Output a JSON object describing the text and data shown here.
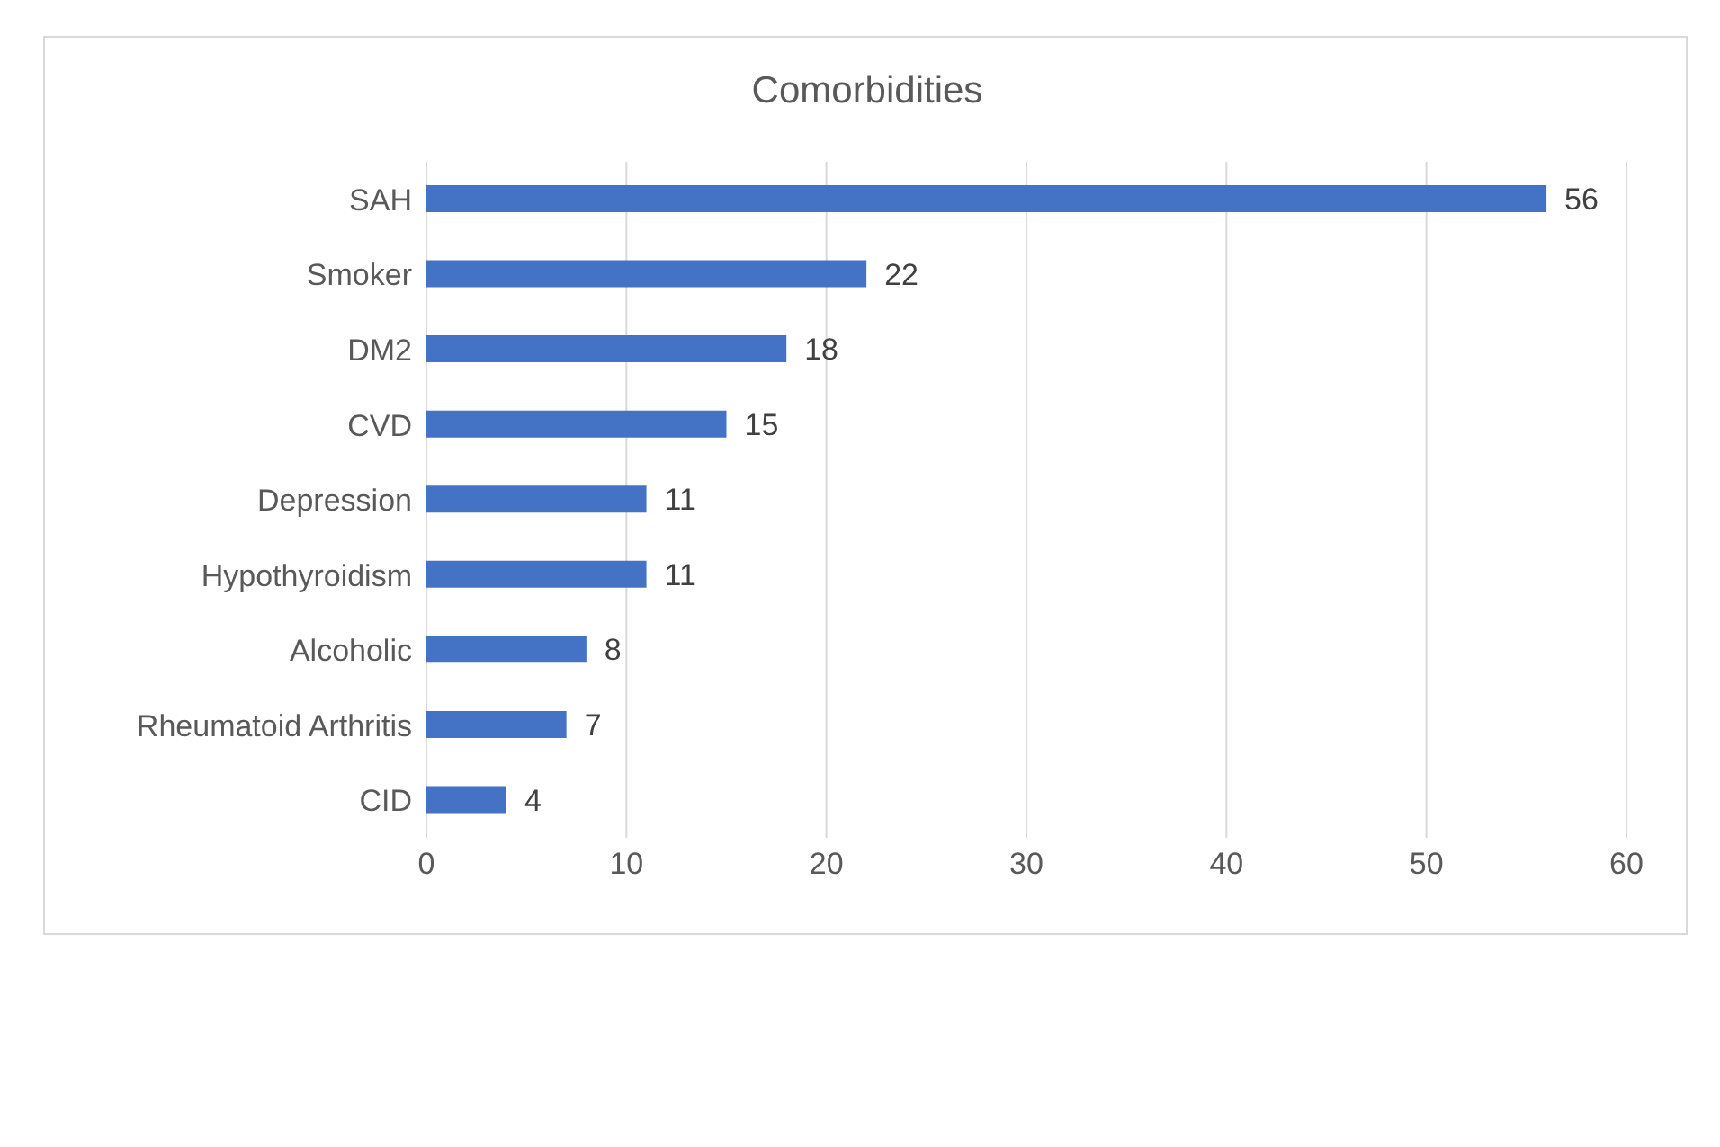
{
  "chart_data": {
    "type": "bar",
    "orientation": "horizontal",
    "title": "Comorbidities",
    "categories": [
      "SAH",
      "Smoker",
      "DM2",
      "CVD",
      "Depression",
      "Hypothyroidism",
      "Alcoholic",
      "Rheumatoid Arthritis",
      "CID"
    ],
    "values": [
      56,
      22,
      18,
      15,
      11,
      11,
      8,
      7,
      4
    ],
    "color": "#4472c4",
    "xlim": [
      0,
      60
    ],
    "xticks": [
      0,
      10,
      20,
      30,
      40,
      50,
      60
    ],
    "grid": "x",
    "data_labels": true,
    "legend": false
  }
}
